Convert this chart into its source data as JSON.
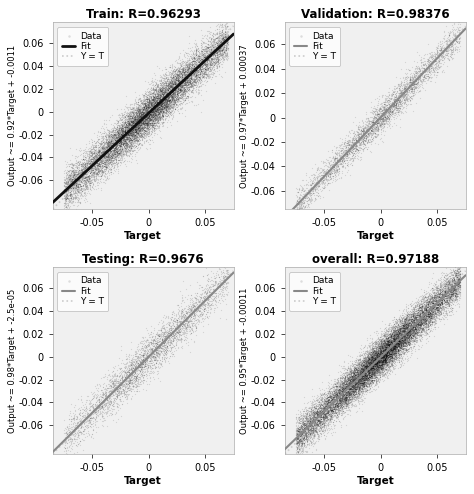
{
  "subplots": [
    {
      "title": "Train: R=0.96293",
      "ylabel": "Output ~= 0.92*Target + -0.0011",
      "xlabel": "Target",
      "slope": 0.92,
      "intercept": -0.0011,
      "R": 0.96293,
      "n_points": 15000,
      "xlim": [
        -0.085,
        0.075
      ],
      "ylim": [
        -0.085,
        0.078
      ],
      "xticks": [
        -0.05,
        0,
        0.05
      ],
      "yticks": [
        -0.06,
        -0.04,
        -0.02,
        0,
        0.02,
        0.04,
        0.06
      ],
      "seed": 42,
      "fit_color": "#111111",
      "fit_lw": 2.0
    },
    {
      "title": "Validation: R=0.98376",
      "ylabel": "Output ~= 0.97*Target + 0.00037",
      "xlabel": "Target",
      "slope": 0.97,
      "intercept": 0.00037,
      "R": 0.98376,
      "n_points": 4000,
      "xlim": [
        -0.085,
        0.075
      ],
      "ylim": [
        -0.075,
        0.078
      ],
      "xticks": [
        -0.05,
        0,
        0.05
      ],
      "yticks": [
        -0.06,
        -0.04,
        -0.02,
        0,
        0.02,
        0.04,
        0.06
      ],
      "seed": 123,
      "fit_color": "#888888",
      "fit_lw": 1.5
    },
    {
      "title": "Testing: R=0.9676",
      "ylabel": "Output ~= 0.98*Target + -2.5e-05",
      "xlabel": "Target",
      "slope": 0.98,
      "intercept": -2.5e-05,
      "R": 0.9676,
      "n_points": 4000,
      "xlim": [
        -0.085,
        0.075
      ],
      "ylim": [
        -0.085,
        0.078
      ],
      "xticks": [
        -0.05,
        0,
        0.05
      ],
      "yticks": [
        -0.06,
        -0.04,
        -0.02,
        0,
        0.02,
        0.04,
        0.06
      ],
      "seed": 77,
      "fit_color": "#888888",
      "fit_lw": 1.5
    },
    {
      "title": "overall: R=0.97188",
      "ylabel": "Output ~= 0.95*Target + -0.00011",
      "xlabel": "Target",
      "slope": 0.95,
      "intercept": -0.00011,
      "R": 0.97188,
      "n_points": 20000,
      "xlim": [
        -0.085,
        0.075
      ],
      "ylim": [
        -0.085,
        0.078
      ],
      "xticks": [
        -0.05,
        0,
        0.05
      ],
      "yticks": [
        -0.06,
        -0.04,
        -0.02,
        0,
        0.02,
        0.04,
        0.06
      ],
      "seed": 999,
      "fit_color": "#888888",
      "fit_lw": 1.5
    }
  ],
  "fig_bg": "#ffffff",
  "axes_bg": "#f0f0f0",
  "scatter_color": "#000000",
  "scatter_alpha": 0.12,
  "scatter_size": 0.8,
  "yt_color": "#cccccc",
  "yt_linewidth": 1.2,
  "legend_fontsize": 6.5,
  "title_fontsize": 8.5,
  "label_fontsize": 7.5,
  "tick_fontsize": 7
}
